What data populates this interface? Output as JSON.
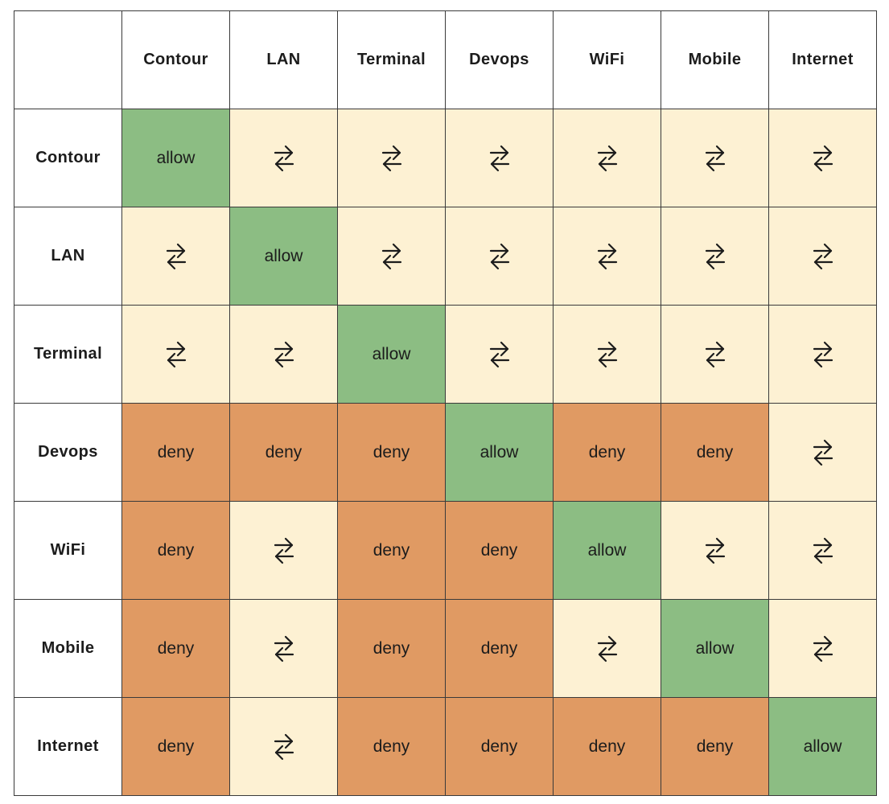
{
  "corner_label": "",
  "columns": [
    "Contour",
    "LAN",
    "Terminal",
    "Devops",
    "WiFi",
    "Mobile",
    "Internet"
  ],
  "rows": [
    {
      "label": "Contour",
      "cells": [
        "allow",
        "bidir",
        "bidir",
        "bidir",
        "bidir",
        "bidir",
        "bidir"
      ]
    },
    {
      "label": "LAN",
      "cells": [
        "bidir",
        "allow",
        "bidir",
        "bidir",
        "bidir",
        "bidir",
        "bidir"
      ]
    },
    {
      "label": "Terminal",
      "cells": [
        "bidir",
        "bidir",
        "allow",
        "bidir",
        "bidir",
        "bidir",
        "bidir"
      ]
    },
    {
      "label": "Devops",
      "cells": [
        "deny",
        "deny",
        "deny",
        "allow",
        "deny",
        "deny",
        "bidir"
      ]
    },
    {
      "label": "WiFi",
      "cells": [
        "deny",
        "bidir",
        "deny",
        "deny",
        "allow",
        "bidir",
        "bidir"
      ]
    },
    {
      "label": "Mobile",
      "cells": [
        "deny",
        "bidir",
        "deny",
        "deny",
        "bidir",
        "allow",
        "bidir"
      ]
    },
    {
      "label": "Internet",
      "cells": [
        "deny",
        "bidir",
        "deny",
        "deny",
        "deny",
        "deny",
        "allow"
      ]
    }
  ],
  "labels": {
    "allow": "allow",
    "deny": "deny"
  },
  "icons": {
    "bidir": "bidirectional-arrows-icon"
  },
  "colors": {
    "allow": "#8cbd83",
    "deny": "#e09a63",
    "bidir": "#fdf1d3",
    "header": "#ffffff",
    "grid": "#3a3a3a"
  }
}
